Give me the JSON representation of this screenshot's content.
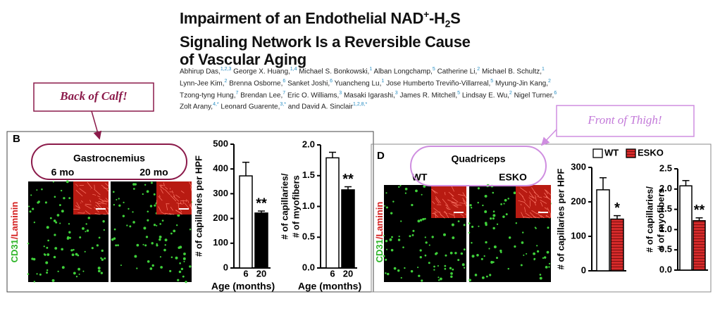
{
  "header": {
    "title": [
      [
        "Impairment of an Endothelial NAD",
        "+",
        "-H",
        "2",
        "S"
      ],
      "Signaling Network Is a Reversible Cause",
      "of Vascular Aging"
    ],
    "authors": [
      [
        {
          "name": "Abhirup Das,",
          "affil": "1,2,3"
        },
        {
          "name": "George X. Huang,",
          "affil": "1,4"
        },
        {
          "name": "Michael S. Bonkowski,",
          "affil": "1"
        },
        {
          "name": "Alban Longchamp,",
          "affil": "5"
        },
        {
          "name": "Catherine Li,",
          "affil": "2"
        },
        {
          "name": "Michael B. Schultz,",
          "affil": "1"
        }
      ],
      [
        {
          "name": "Lynn-Jee Kim,",
          "affil": "2"
        },
        {
          "name": "Brenna Osborne,",
          "affil": "6"
        },
        {
          "name": "Sanket Joshi,",
          "affil": "6"
        },
        {
          "name": "Yuancheng Lu,",
          "affil": "1"
        },
        {
          "name": "Jose Humberto Treviño-Villarreal,",
          "affil": "5"
        },
        {
          "name": "Myung-Jin Kang,",
          "affil": "2"
        }
      ],
      [
        {
          "name": "Tzong-tyng Hung,",
          "affil": "7"
        },
        {
          "name": "Brendan Lee,",
          "affil": "7"
        },
        {
          "name": "Eric O. Williams,",
          "affil": "3"
        },
        {
          "name": "Masaki Igarashi,",
          "affil": "3"
        },
        {
          "name": "James R. Mitchell,",
          "affil": "5"
        },
        {
          "name": "Lindsay E. Wu,",
          "affil": "2"
        },
        {
          "name": "Nigel Turner,",
          "affil": "6"
        }
      ],
      [
        {
          "name": "Zolt Arany,",
          "affil": "4,*"
        },
        {
          "name": "Leonard Guarente,",
          "affil": "3,*"
        },
        {
          "name": "and David A. Sinclair",
          "affil": "1,2,8,*"
        }
      ]
    ]
  },
  "callouts": [
    "Back of Calf!",
    "Front of Thigh!"
  ],
  "panels": [
    {
      "label": "B",
      "muscle": "Gastrocnemius",
      "columns": [
        "6 mo",
        "20 mo"
      ],
      "stain": [
        "CD31",
        "/Laminin"
      ]
    },
    {
      "label": "D",
      "muscle": "Quadriceps",
      "columns": [
        "WT",
        "ESKO"
      ],
      "stain": [
        "CD31",
        "/Laminin"
      ],
      "legend": [
        {
          "name": "WT",
          "color": "#ffffff"
        },
        {
          "name": "ESKO",
          "color": "#d42a2a"
        }
      ]
    }
  ],
  "chart_data": [
    {
      "type": "bar",
      "ylabel": [
        "# of capillaries per HPF"
      ],
      "xlabel": "Age (months)",
      "categories": [
        "6",
        "20"
      ],
      "values": [
        372,
        222
      ],
      "errors": [
        55,
        8
      ],
      "colors": [
        "#ffffff",
        "#000000"
      ],
      "significance": [
        null,
        "**"
      ],
      "ylim": [
        0,
        500
      ],
      "yticks": [
        0,
        100,
        200,
        300,
        400,
        500
      ]
    },
    {
      "type": "bar",
      "ylabel": [
        "# of capillaries/",
        "# of myofibers"
      ],
      "xlabel": "Age (months)",
      "categories": [
        "6",
        "20"
      ],
      "values": [
        1.79,
        1.27
      ],
      "errors": [
        0.09,
        0.05
      ],
      "colors": [
        "#ffffff",
        "#000000"
      ],
      "significance": [
        null,
        "**"
      ],
      "ylim": [
        0,
        2.0
      ],
      "yticks": [
        {
          "value": 0,
          "label": "0.0"
        },
        0.5,
        {
          "value": 1,
          "label": "1.0"
        },
        1.5,
        {
          "value": 2,
          "label": "2.0"
        }
      ]
    },
    {
      "type": "bar",
      "ylabel": [
        "# of capillaries per HPF"
      ],
      "categories": [
        null,
        null
      ],
      "values": [
        235,
        150
      ],
      "errors": [
        35,
        10
      ],
      "colors": [
        "#ffffff",
        "#d42a2a"
      ],
      "significance": [
        null,
        "*"
      ],
      "ylim": [
        0,
        300
      ],
      "yticks": [
        0,
        100,
        200,
        300
      ]
    },
    {
      "type": "bar",
      "ylabel": [
        "# of capillaries/",
        "# of myofibers"
      ],
      "categories": [
        null,
        null
      ],
      "values": [
        2.08,
        1.22
      ],
      "errors": [
        0.13,
        0.07
      ],
      "colors": [
        "#ffffff",
        "#d42a2a"
      ],
      "significance": [
        null,
        "**"
      ],
      "ylim": [
        0,
        2.5
      ],
      "yticks": [
        {
          "value": 0,
          "label": "0.0"
        },
        0.5,
        {
          "value": 1,
          "label": "1.0"
        },
        1.5,
        {
          "value": 2,
          "label": "2.0"
        },
        2.5
      ]
    }
  ]
}
